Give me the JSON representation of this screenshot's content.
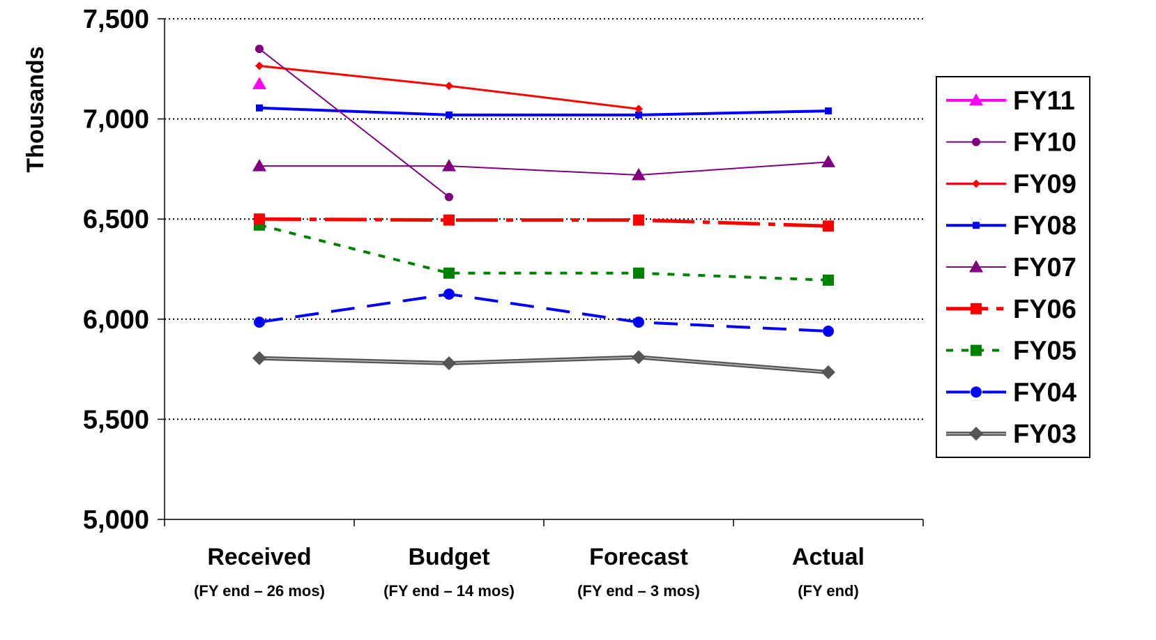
{
  "chart_data": {
    "type": "line",
    "ylabel": "Thousands",
    "ylim": [
      5000,
      7500
    ],
    "yticks": [
      "5,000",
      "5,500",
      "6,000",
      "6,500",
      "7,000",
      "7,500"
    ],
    "ytick_values": [
      5000,
      5500,
      6000,
      6500,
      7000,
      7500
    ],
    "categories": [
      "Received",
      "Budget",
      "Forecast",
      "Actual"
    ],
    "category_sublabels": [
      "(FY end – 26 mos)",
      "(FY end – 14 mos)",
      "(FY end – 3 mos)",
      "(FY end)"
    ],
    "grid": "horizontal dotted",
    "legend_position": "right",
    "series": [
      {
        "name": "FY11",
        "values": [
          7175,
          null,
          null,
          null
        ],
        "color": "#ff00ff",
        "marker": "triangle",
        "line": "solid-thick"
      },
      {
        "name": "FY10",
        "values": [
          7350,
          6610,
          null,
          null
        ],
        "color": "#800080",
        "marker": "circle-small",
        "line": "solid-thin"
      },
      {
        "name": "FY09",
        "values": [
          7265,
          7165,
          7050,
          null
        ],
        "color": "#ff0000",
        "marker": "diamond-small",
        "line": "solid"
      },
      {
        "name": "FY08",
        "values": [
          7055,
          7020,
          7020,
          7040
        ],
        "color": "#0000ff",
        "marker": "square-small",
        "line": "solid-thick"
      },
      {
        "name": "FY07",
        "values": [
          6765,
          6765,
          6720,
          6785
        ],
        "color": "#800080",
        "marker": "triangle",
        "line": "solid-thin"
      },
      {
        "name": "FY06",
        "values": [
          6500,
          6495,
          6495,
          6465
        ],
        "color": "#ff0000",
        "marker": "square",
        "line": "dash-dot"
      },
      {
        "name": "FY05",
        "values": [
          6470,
          6230,
          6230,
          6195
        ],
        "color": "#008000",
        "marker": "square",
        "line": "dotted"
      },
      {
        "name": "FY04",
        "values": [
          5985,
          6125,
          5985,
          5940
        ],
        "color": "#0000ff",
        "marker": "circle",
        "line": "dashed"
      },
      {
        "name": "FY03",
        "values": [
          5805,
          5780,
          5810,
          5735
        ],
        "color": "#555555",
        "marker": "diamond",
        "line": "solid-double"
      }
    ]
  }
}
